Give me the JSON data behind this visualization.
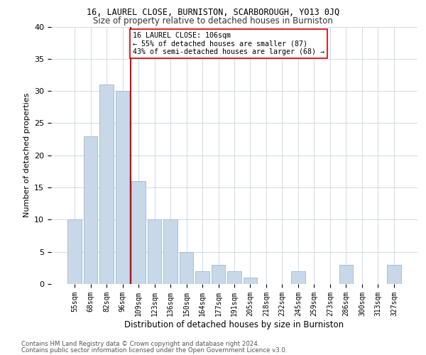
{
  "title1": "16, LAUREL CLOSE, BURNISTON, SCARBOROUGH, YO13 0JQ",
  "title2": "Size of property relative to detached houses in Burniston",
  "xlabel": "Distribution of detached houses by size in Burniston",
  "ylabel": "Number of detached properties",
  "categories": [
    "55sqm",
    "68sqm",
    "82sqm",
    "96sqm",
    "109sqm",
    "123sqm",
    "136sqm",
    "150sqm",
    "164sqm",
    "177sqm",
    "191sqm",
    "205sqm",
    "218sqm",
    "232sqm",
    "245sqm",
    "259sqm",
    "273sqm",
    "286sqm",
    "300sqm",
    "313sqm",
    "327sqm"
  ],
  "values": [
    10,
    23,
    31,
    30,
    16,
    10,
    10,
    5,
    2,
    3,
    2,
    1,
    0,
    0,
    2,
    0,
    0,
    3,
    0,
    0,
    3
  ],
  "bar_color": "#c8d8e8",
  "bar_edge_color": "#a0b8d0",
  "vline_color": "#cc0000",
  "annotation_text": "16 LAUREL CLOSE: 106sqm\n← 55% of detached houses are smaller (87)\n43% of semi-detached houses are larger (68) →",
  "annotation_box_color": "#ffffff",
  "annotation_box_edge": "#cc0000",
  "ylim": [
    0,
    40
  ],
  "yticks": [
    0,
    5,
    10,
    15,
    20,
    25,
    30,
    35,
    40
  ],
  "footer1": "Contains HM Land Registry data © Crown copyright and database right 2024.",
  "footer2": "Contains public sector information licensed under the Open Government Licence v3.0.",
  "bg_color": "#ffffff",
  "grid_color": "#c8d4e0"
}
